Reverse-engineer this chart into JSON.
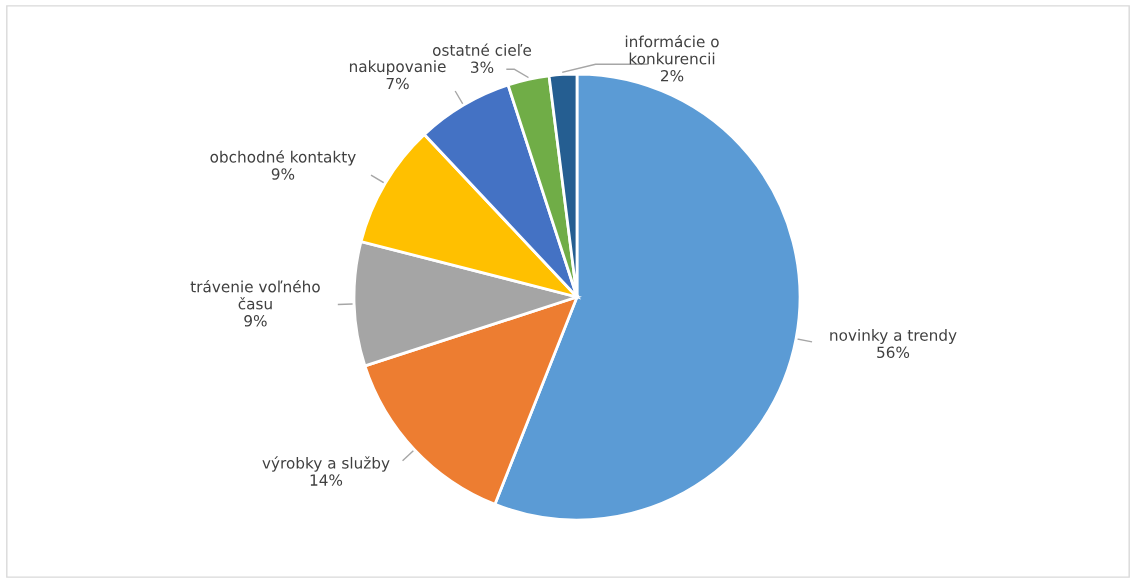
{
  "chart_data": {
    "type": "pie",
    "categories": [
      "novinky a trendy",
      "výrobky a služby",
      "trávenie voľného\nčasu",
      "obchodné kontakty",
      "nakupovanie",
      "ostatné cieľe",
      "informácie o\nkonkurencii"
    ],
    "values": [
      56,
      14,
      9,
      9,
      7,
      3,
      2
    ],
    "value_labels": [
      "56%",
      "14%",
      "9%",
      "9%",
      "7%",
      "3%",
      "2%"
    ],
    "colors": [
      "#5b9bd5",
      "#ed7d31",
      "#a5a5a5",
      "#ffc000",
      "#4472c4",
      "#70ad47",
      "#255e91"
    ],
    "legend": false
  }
}
